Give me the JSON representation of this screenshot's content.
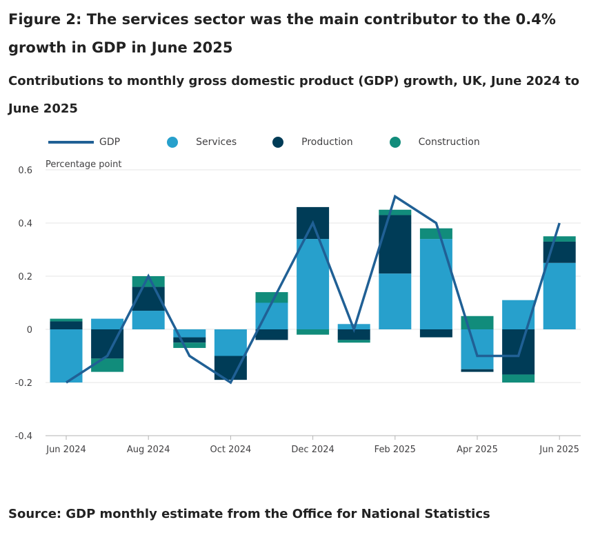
{
  "title": "Figure 2: The services sector was the main contributor to the 0.4% growth in GDP in June 2025",
  "subtitle": "Contributions to monthly gross domestic product (GDP) growth, UK, June 2024 to June 2025",
  "source": "Source: GDP monthly estimate from the Office for National Statistics",
  "colors": {
    "gdp": "#206095",
    "services": "#27a0cc",
    "production": "#003c57",
    "construction": "#118c7b",
    "grid": "#e6e6e6",
    "axis": "#b3b3b3",
    "tick_text": "#414042"
  },
  "chart_data": {
    "type": "bar",
    "stacked": true,
    "categories": [
      "Jun 2024",
      "Jul 2024",
      "Aug 2024",
      "Sep 2024",
      "Oct 2024",
      "Nov 2024",
      "Dec 2024",
      "Jan 2025",
      "Feb 2025",
      "Mar 2025",
      "Apr 2025",
      "May 2025",
      "Jun 2025"
    ],
    "xticks": [
      "Jun 2024",
      "Aug 2024",
      "Oct 2024",
      "Dec 2024",
      "Feb 2025",
      "Apr 2025",
      "Jun 2025"
    ],
    "series": [
      {
        "name": "Services",
        "type": "bar",
        "color": "#27a0cc",
        "values": [
          -0.2,
          0.04,
          0.07,
          -0.03,
          -0.1,
          0.1,
          0.34,
          0.02,
          0.21,
          0.34,
          -0.15,
          0.11,
          0.25
        ]
      },
      {
        "name": "Production",
        "type": "bar",
        "color": "#003c57",
        "values": [
          0.03,
          -0.11,
          0.09,
          -0.02,
          -0.09,
          -0.04,
          0.12,
          -0.04,
          0.22,
          -0.03,
          -0.01,
          -0.17,
          0.08
        ]
      },
      {
        "name": "Construction",
        "type": "bar",
        "color": "#118c7b",
        "values": [
          0.01,
          -0.05,
          0.04,
          -0.02,
          0.0,
          0.04,
          -0.02,
          -0.01,
          0.02,
          0.04,
          0.05,
          -0.03,
          0.02
        ]
      },
      {
        "name": "GDP",
        "type": "line",
        "color": "#206095",
        "values": [
          -0.2,
          -0.1,
          0.2,
          -0.1,
          -0.2,
          0.1,
          0.4,
          0.0,
          0.5,
          0.4,
          -0.1,
          -0.1,
          0.4
        ]
      }
    ],
    "ylabel": "Percentage point",
    "xlabel": "",
    "ylim": [
      -0.4,
      0.6
    ],
    "yticks": [
      -0.4,
      -0.2,
      0,
      0.2,
      0.4,
      0.6
    ],
    "ytick_labels": [
      "-0.4",
      "-0.2",
      "0",
      "0.2",
      "0.4",
      "0.6"
    ],
    "grid": true,
    "legend_position": "top-left"
  }
}
